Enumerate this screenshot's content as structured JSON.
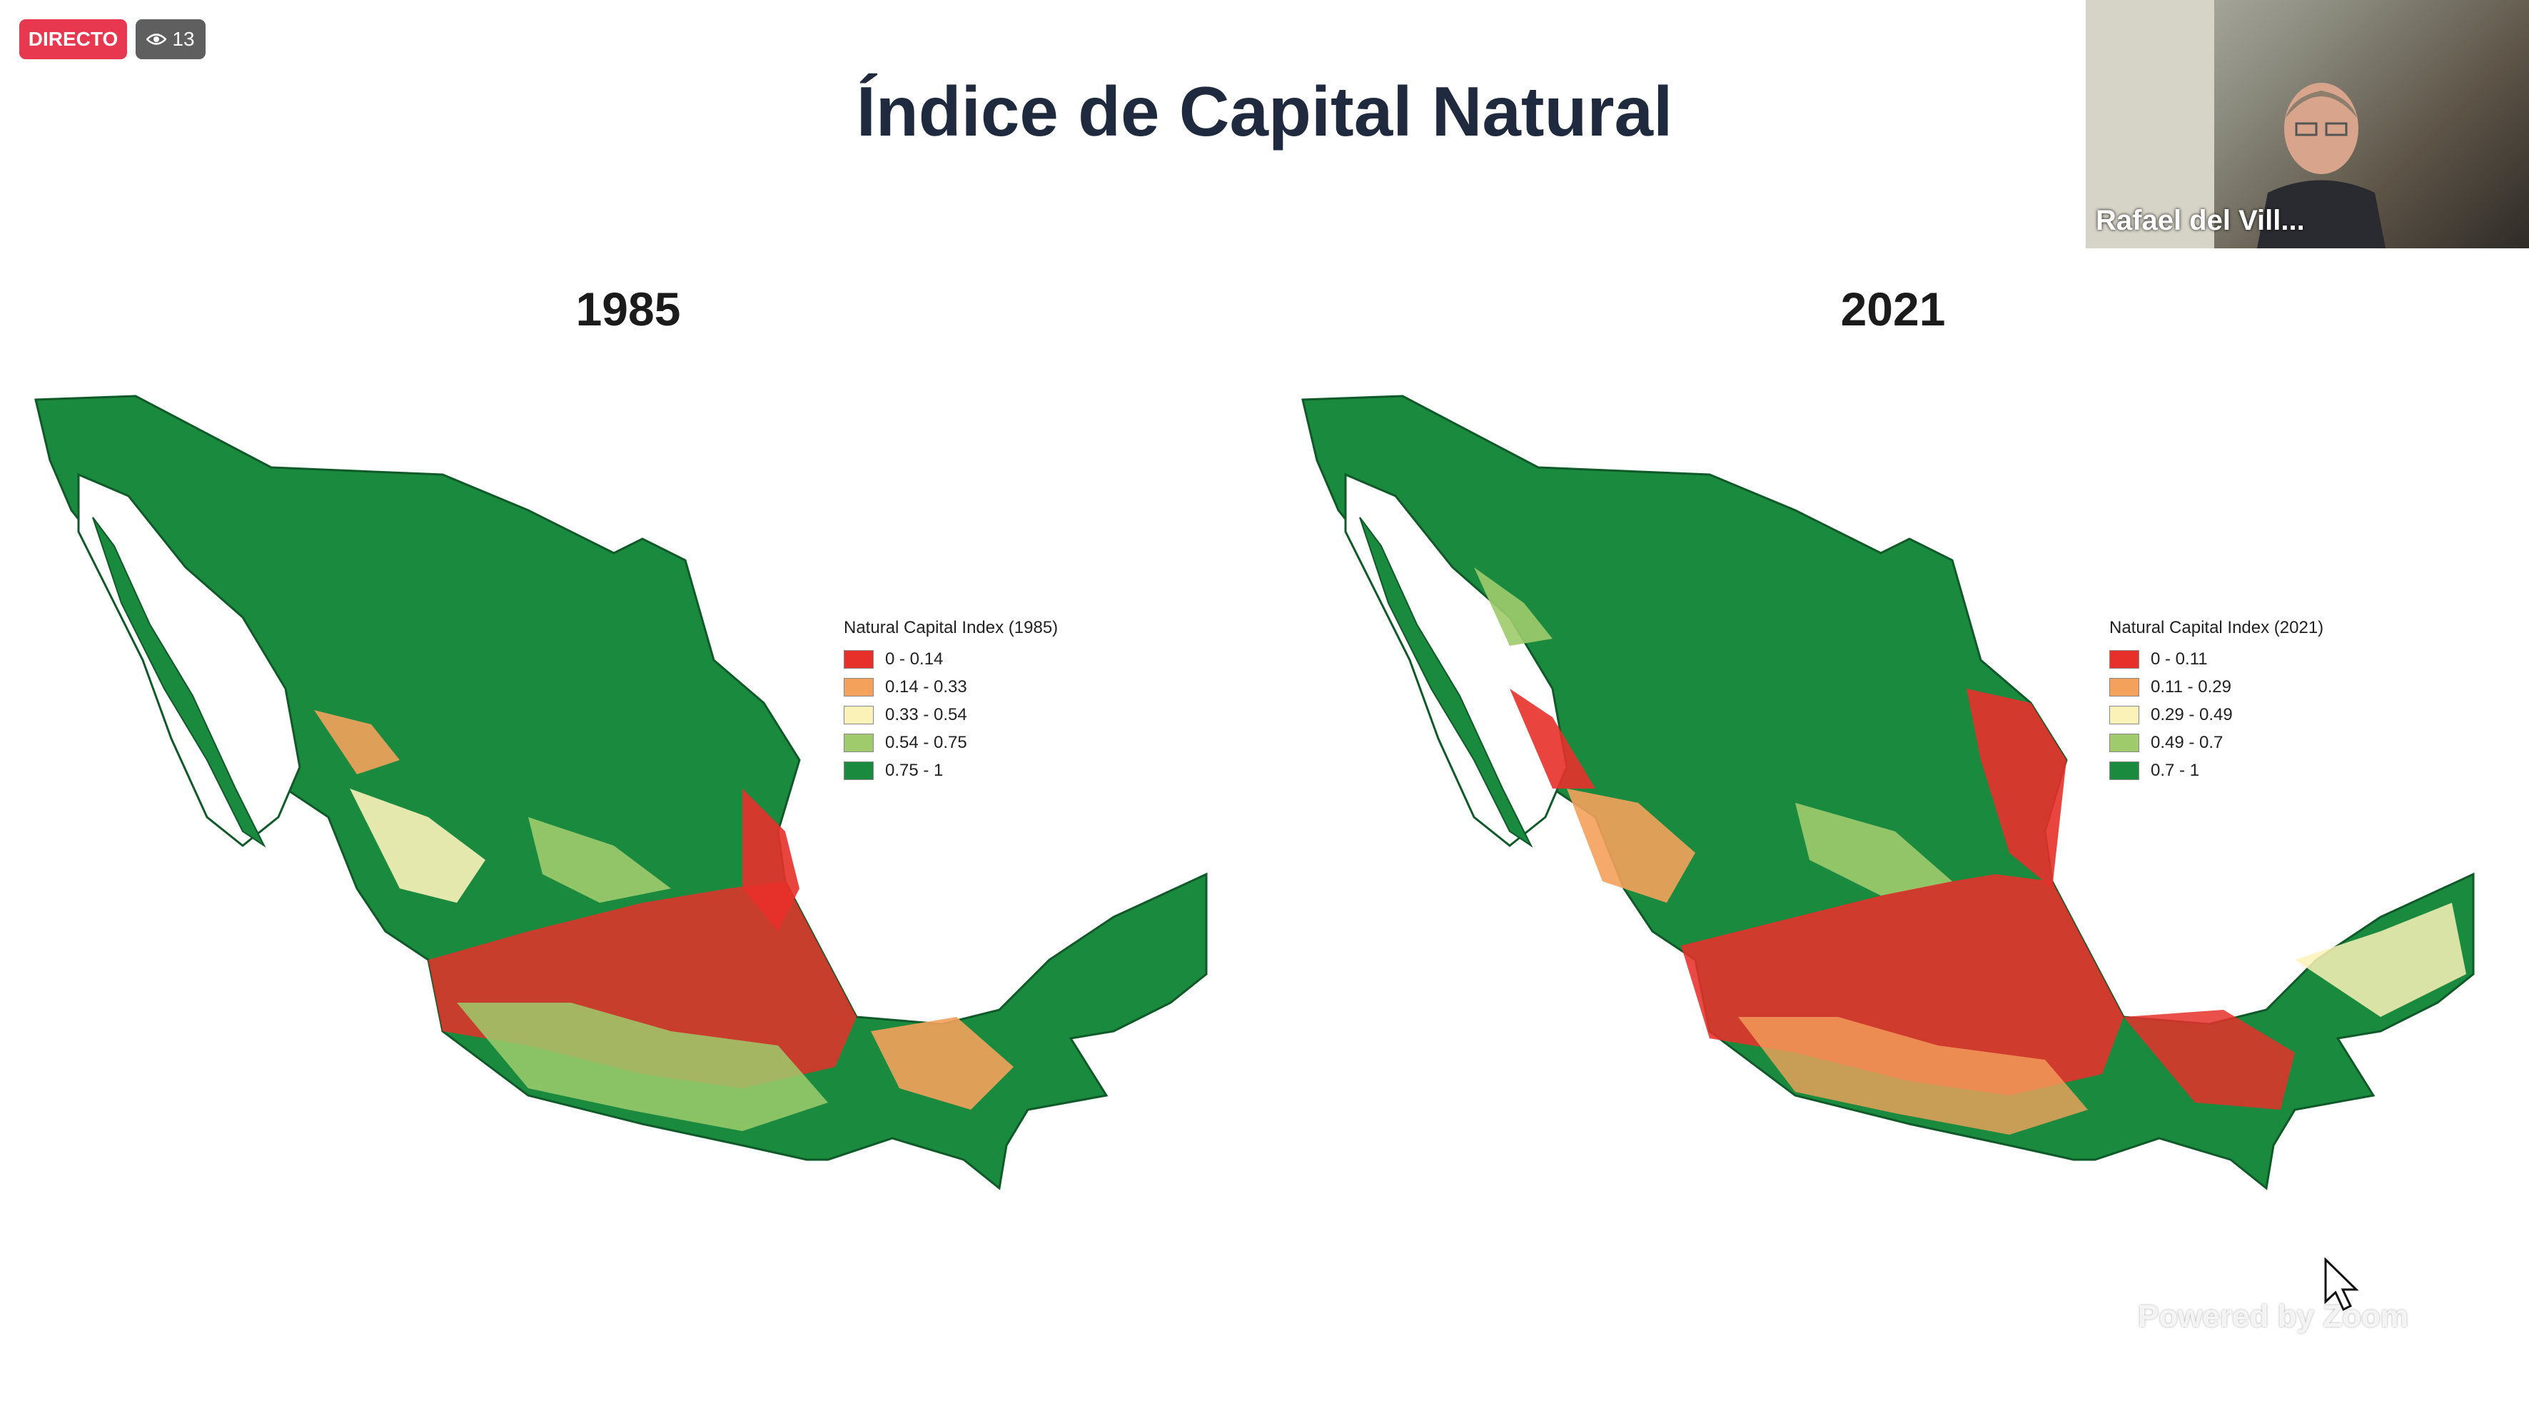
{
  "status": {
    "live_label": "DIRECTO",
    "viewer_count": "13"
  },
  "slide": {
    "title": "Índice de Capital Natural",
    "maps": [
      {
        "year": "1985",
        "legend": {
          "title": "Natural Capital Index (1985)",
          "items": [
            {
              "label": "0 - 0.14",
              "color": "#e8302a"
            },
            {
              "label": "0.14 - 0.33",
              "color": "#f4a15c"
            },
            {
              "label": "0.33 - 0.54",
              "color": "#fbf2b8"
            },
            {
              "label": "0.54 - 0.75",
              "color": "#9fcb6d"
            },
            {
              "label": "0.75 - 1",
              "color": "#1a8a3f"
            }
          ]
        }
      },
      {
        "year": "2021",
        "legend": {
          "title": "Natural Capital Index (2021)",
          "items": [
            {
              "label": "0 - 0.11",
              "color": "#e8302a"
            },
            {
              "label": "0.11 - 0.29",
              "color": "#f4a15c"
            },
            {
              "label": "0.29 - 0.49",
              "color": "#fbf2b8"
            },
            {
              "label": "0.49 - 0.7",
              "color": "#9fcb6d"
            },
            {
              "label": "0.7 - 1",
              "color": "#1a8a3f"
            }
          ]
        }
      }
    ]
  },
  "participant": {
    "name": "Rafael del Vill..."
  },
  "watermark": "Powered by Zoom",
  "icons": [
    "eye-icon",
    "cursor-icon"
  ]
}
